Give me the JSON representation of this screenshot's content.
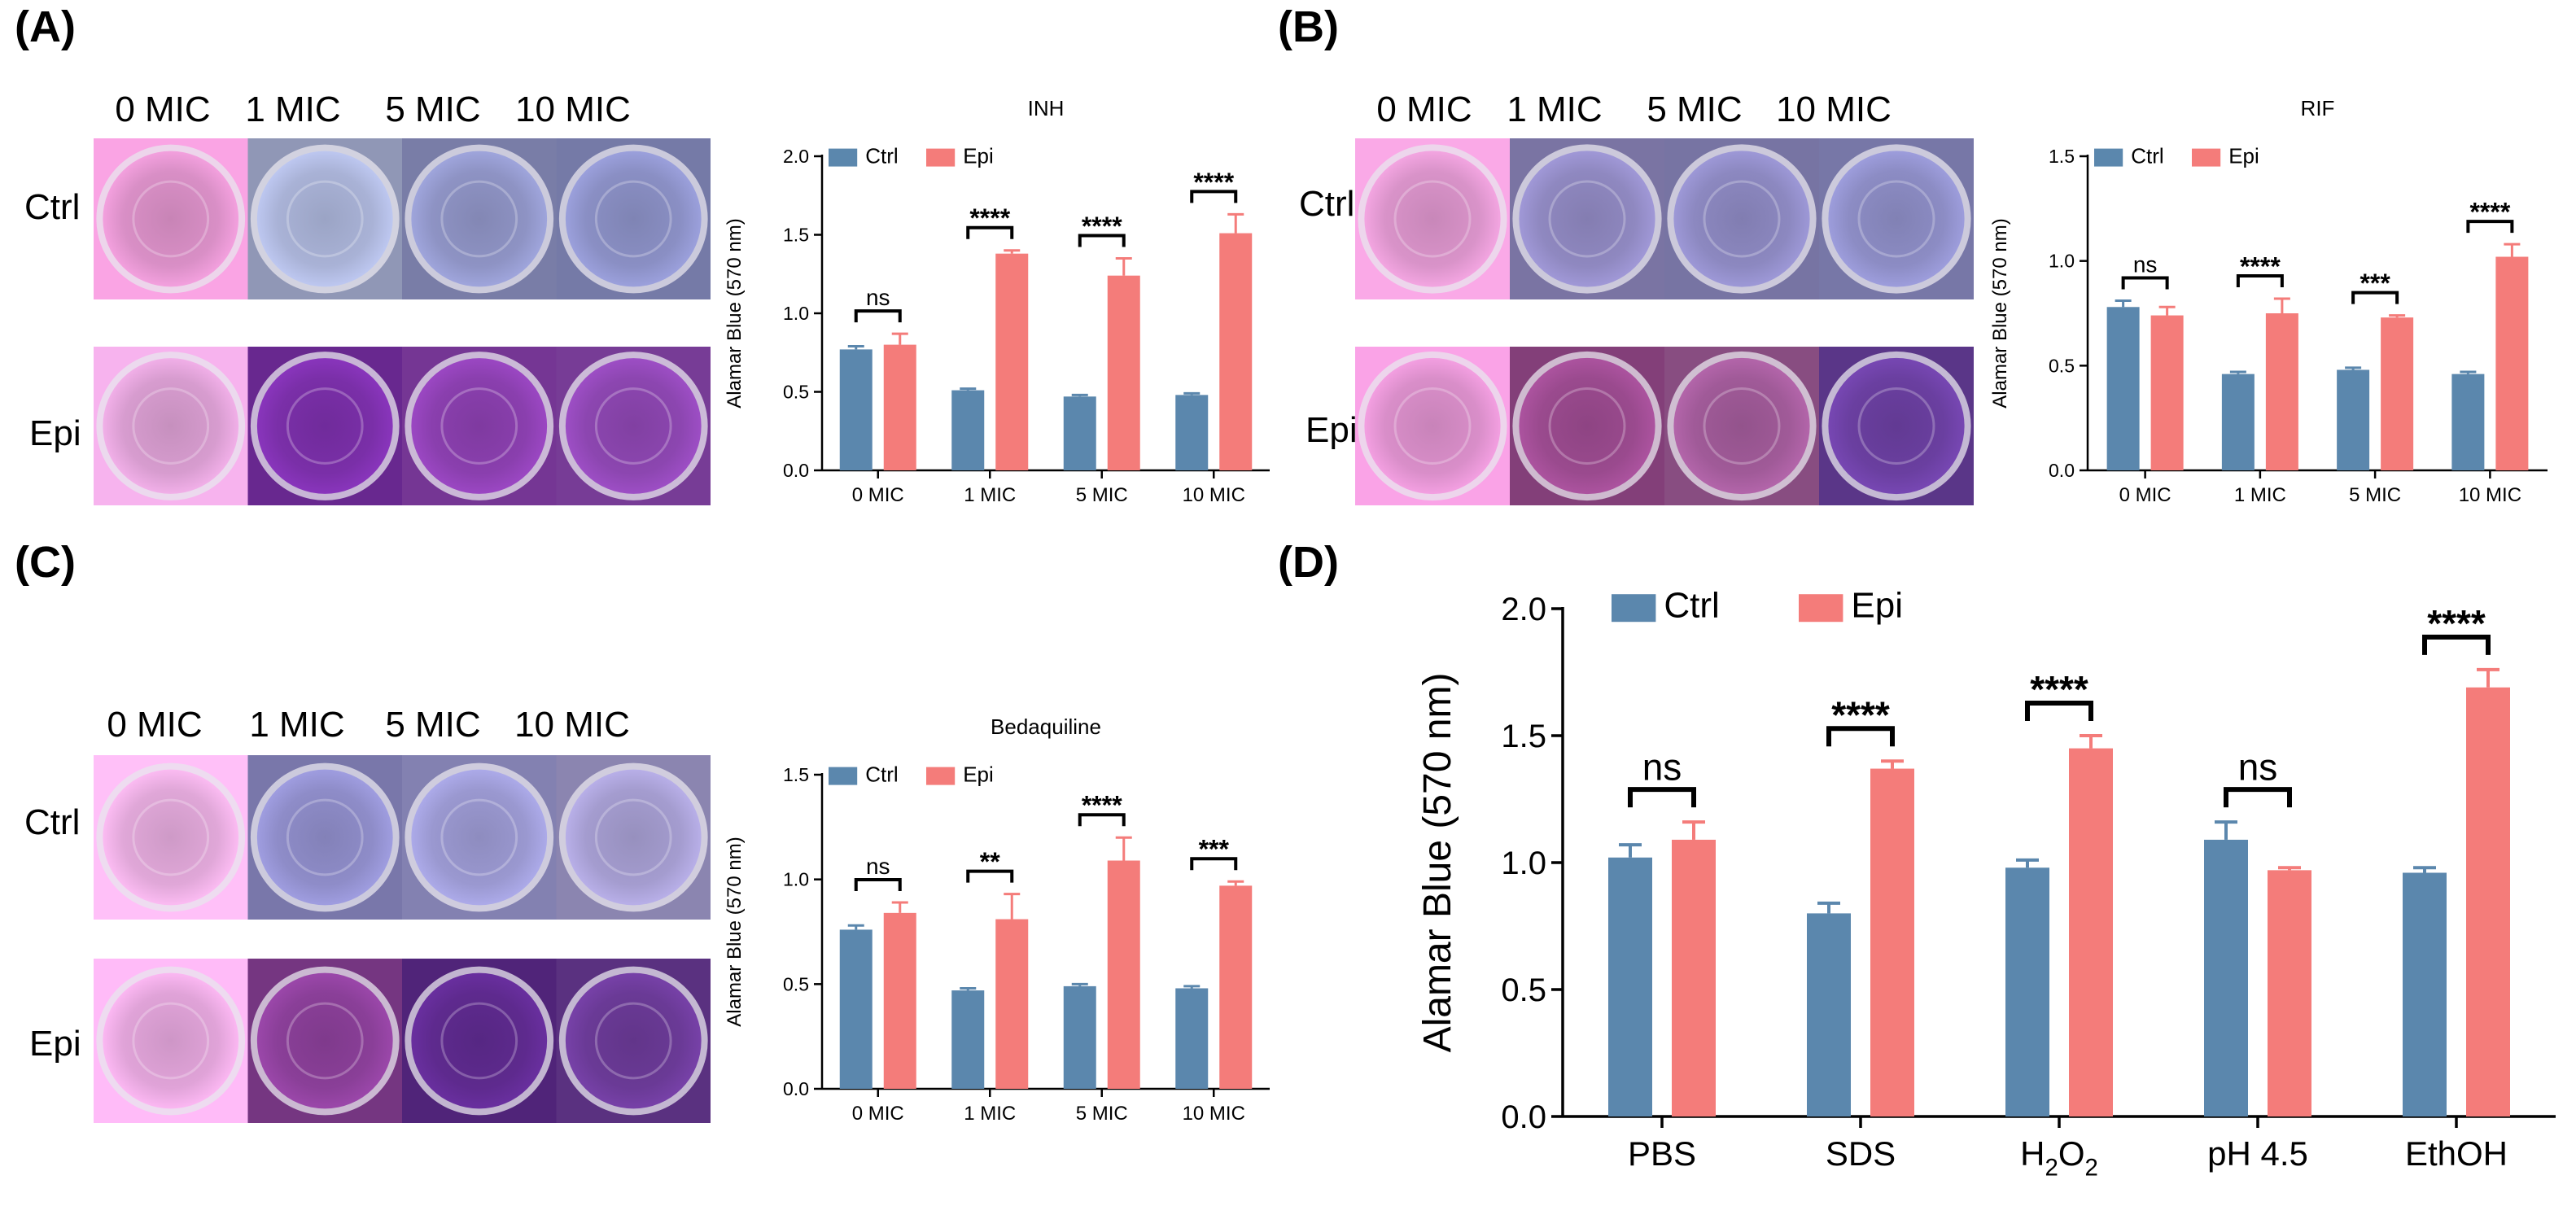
{
  "panels": {
    "A": {
      "label": "(A)",
      "columns": [
        "0 MIC",
        "1 MIC",
        "5 MIC",
        "10 MIC"
      ],
      "rows": [
        "Ctrl",
        "Epi"
      ],
      "well_colors": {
        "Ctrl": [
          "#d98fc6",
          "#a9b2d6",
          "#8e93c4",
          "#8a8fc4"
        ],
        "Epi": [
          "#d79ccf",
          "#7a2fa8",
          "#8a3fae",
          "#8c46b0"
        ]
      }
    },
    "B": {
      "label": "(B)",
      "columns": [
        "0 MIC",
        "1 MIC",
        "5 MIC",
        "10 MIC"
      ],
      "rows": [
        "Ctrl",
        "Epi"
      ],
      "well_colors": {
        "Ctrl": [
          "#d993c9",
          "#8f88c0",
          "#8c88c0",
          "#8c8cc4"
        ],
        "Epi": [
          "#d98ec9",
          "#9a4a8e",
          "#a05a98",
          "#6a3fa0"
        ]
      }
    },
    "C": {
      "label": "(C)",
      "columns": [
        "0 MIC",
        "1 MIC",
        "5 MIC",
        "10 MIC"
      ],
      "rows": [
        "Ctrl",
        "Epi"
      ],
      "well_colors": {
        "Ctrl": [
          "#e0a7d8",
          "#8e8cc8",
          "#9a98d0",
          "#a49ccf"
        ],
        "Epi": [
          "#e0a3d8",
          "#8a3f98",
          "#5e2a8e",
          "#6a3a96"
        ]
      }
    },
    "D": {
      "label": "(D)"
    }
  },
  "colors": {
    "ctrl": "#5b87ad",
    "epi": "#f47c7a"
  },
  "chart_data": [
    {
      "id": "A",
      "type": "bar",
      "title": "INH",
      "categories": [
        "0 MIC",
        "1 MIC",
        "5 MIC",
        "10 MIC"
      ],
      "series": [
        {
          "name": "Ctrl",
          "values": [
            0.77,
            0.51,
            0.47,
            0.48
          ],
          "errors": [
            0.02,
            0.01,
            0.01,
            0.01
          ]
        },
        {
          "name": "Epi",
          "values": [
            0.8,
            1.38,
            1.24,
            1.51
          ],
          "errors": [
            0.07,
            0.02,
            0.11,
            0.12
          ]
        }
      ],
      "significance": [
        "ns",
        "****",
        "****",
        "****"
      ],
      "ylabel": "Alamar Blue (570 nm)",
      "xlabel": "",
      "ylim": [
        0,
        2.0
      ],
      "yticks": [
        "0.0",
        "0.5",
        "1.0",
        "1.5",
        "2.0"
      ],
      "legend": "top-left"
    },
    {
      "id": "B",
      "type": "bar",
      "title": "RIF",
      "categories": [
        "0 MIC",
        "1 MIC",
        "5 MIC",
        "10 MIC"
      ],
      "series": [
        {
          "name": "Ctrl",
          "values": [
            0.78,
            0.46,
            0.48,
            0.46
          ],
          "errors": [
            0.03,
            0.01,
            0.01,
            0.01
          ]
        },
        {
          "name": "Epi",
          "values": [
            0.74,
            0.75,
            0.73,
            1.02
          ],
          "errors": [
            0.04,
            0.07,
            0.01,
            0.06
          ]
        }
      ],
      "significance": [
        "ns",
        "****",
        "***",
        "****"
      ],
      "ylabel": "Alamar Blue (570 nm)",
      "xlabel": "",
      "ylim": [
        0,
        1.5
      ],
      "yticks": [
        "0.0",
        "0.5",
        "1.0",
        "1.5"
      ],
      "legend": "top-left"
    },
    {
      "id": "C",
      "type": "bar",
      "title": "Bedaquiline",
      "categories": [
        "0 MIC",
        "1 MIC",
        "5 MIC",
        "10 MIC"
      ],
      "series": [
        {
          "name": "Ctrl",
          "values": [
            0.76,
            0.47,
            0.49,
            0.48
          ],
          "errors": [
            0.02,
            0.01,
            0.01,
            0.01
          ]
        },
        {
          "name": "Epi",
          "values": [
            0.84,
            0.81,
            1.09,
            0.97
          ],
          "errors": [
            0.05,
            0.12,
            0.11,
            0.02
          ]
        }
      ],
      "significance": [
        "ns",
        "**",
        "****",
        "***"
      ],
      "ylabel": "Alamar Blue (570 nm)",
      "xlabel": "",
      "ylim": [
        0,
        1.5
      ],
      "yticks": [
        "0.0",
        "0.5",
        "1.0",
        "1.5"
      ],
      "legend": "top-left"
    },
    {
      "id": "D",
      "type": "bar",
      "title": "",
      "categories": [
        "PBS",
        "SDS",
        "H2O2",
        "pH 4.5",
        "EthOH"
      ],
      "series": [
        {
          "name": "Ctrl",
          "values": [
            1.02,
            0.8,
            0.98,
            1.09,
            0.96
          ],
          "errors": [
            0.05,
            0.04,
            0.03,
            0.07,
            0.02
          ]
        },
        {
          "name": "Epi",
          "values": [
            1.09,
            1.37,
            1.45,
            0.97,
            1.69
          ],
          "errors": [
            0.07,
            0.03,
            0.05,
            0.01,
            0.07
          ]
        }
      ],
      "significance": [
        "ns",
        "****",
        "****",
        "ns",
        "****"
      ],
      "ylabel": "Alamar Blue (570 nm)",
      "xlabel": "",
      "ylim": [
        0,
        2.0
      ],
      "yticks": [
        "0.0",
        "0.5",
        "1.0",
        "1.5",
        "2.0"
      ],
      "legend": "top-left"
    }
  ]
}
